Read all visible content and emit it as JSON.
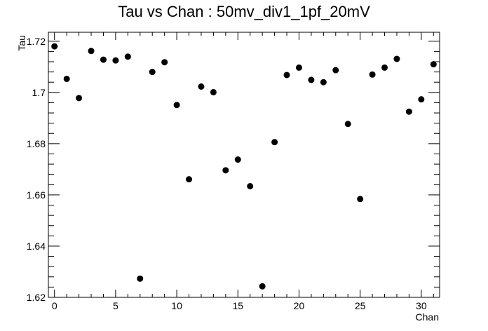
{
  "chart_data": {
    "type": "scatter",
    "title": "Tau vs Chan : 50mv_div1_1pf_20mV",
    "xlabel": "Chan",
    "ylabel": "Tau",
    "xlim": [
      -0.5,
      31.5
    ],
    "ylim": [
      1.62,
      1.7235
    ],
    "x_ticks": [
      0,
      5,
      10,
      15,
      20,
      25,
      30
    ],
    "y_ticks": [
      1.62,
      1.64,
      1.66,
      1.68,
      1.7,
      1.72
    ],
    "x_tick_labels": [
      "0",
      "5",
      "10",
      "15",
      "20",
      "25",
      "30"
    ],
    "y_tick_labels": [
      "1.62",
      "1.64",
      "1.66",
      "1.68",
      "1.7",
      "1.72"
    ],
    "grid": false,
    "marker_color": "#000000",
    "series": [
      {
        "x": [
          0,
          1,
          2,
          3,
          4,
          5,
          6,
          7,
          8,
          9,
          10,
          11,
          12,
          13,
          14,
          15,
          16,
          17,
          18,
          19,
          20,
          21,
          22,
          23,
          24,
          25,
          26,
          27,
          28,
          29,
          30,
          31
        ],
        "y": [
          1.718,
          1.7053,
          1.6978,
          1.7162,
          1.7128,
          1.7125,
          1.714,
          1.6273,
          1.708,
          1.7118,
          1.6951,
          1.6661,
          1.7023,
          1.7001,
          1.6696,
          1.6738,
          1.6634,
          1.6243,
          1.6806,
          1.7068,
          1.7097,
          1.7049,
          1.704,
          1.7087,
          1.6877,
          1.6584,
          1.707,
          1.7097,
          1.7131,
          1.6925,
          1.6973,
          1.711
        ]
      }
    ]
  }
}
